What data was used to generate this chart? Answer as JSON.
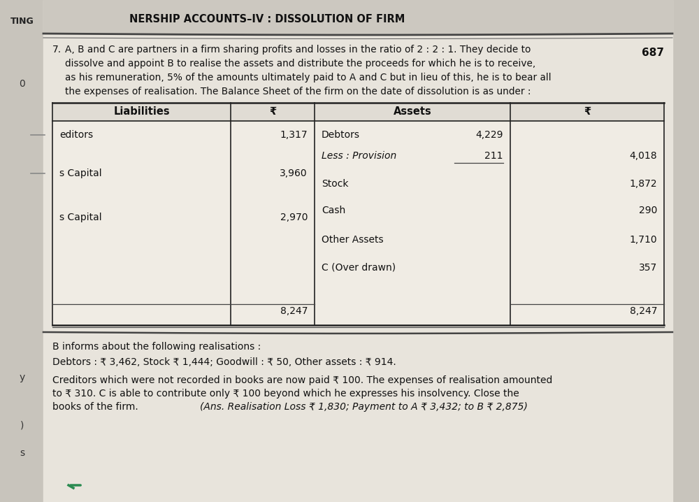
{
  "bg_color": "#c8c4bc",
  "page_bg": "#e8e4dc",
  "header_bg": "#ccc8c0",
  "header_text": "NERSHIP ACCOUNTS–IV : DISSOLUTION OF FIRM",
  "header_left": "TING",
  "page_number": "687",
  "question_number": "7.",
  "question_line1": "A, B and C are partners in a firm sharing profits and losses in the ratio of 2 : 2 : 1. They decide to",
  "question_line2": "dissolve and appoint B to realise the assets and distribute the proceeds for which he is to receive,",
  "question_line3": "as his remuneration, 5% of the amounts ultimately paid to A and C but in lieu of this, he is to bear all",
  "question_line4": "the expenses of realisation. The Balance Sheet of the firm on the date of dissolution is as under :",
  "table_header_liabilities": "Liabilities",
  "table_header_rupee1": "₹",
  "table_header_assets": "Assets",
  "table_header_rupee2": "₹",
  "liab_row1_name": "editors",
  "liab_row1_val": "1,317",
  "liab_row2_name": "s Capital",
  "liab_row2_val": "3,960",
  "liab_row3_name": "s Capital",
  "liab_row3_val": "2,970",
  "liabilities_total": "8,247",
  "asset_row1_name": "Debtors",
  "asset_row1_sub": "4,229",
  "asset_row1_val": "",
  "asset_row2_name": "Less : Provision",
  "asset_row2_sub": "211",
  "asset_row2_val": "4,018",
  "asset_row3_name": "Stock",
  "asset_row3_val": "1,872",
  "asset_row4_name": "Cash",
  "asset_row4_val": "290",
  "asset_row5_name": "Other Assets",
  "asset_row5_val": "1,710",
  "asset_row6_name": "C (Over drawn)",
  "asset_row6_val": "357",
  "assets_total": "8,247",
  "para1": "B informs about the following realisations :",
  "para2": "Debtors : ₹ 3,462, Stock ₹ 1,444; Goodwill : ₹ 50, Other assets : ₹ 914.",
  "para3a": "Creditors which were not recorded in books are now paid ₹ 100. The expenses of realisation amounted",
  "para3b": "to ₹ 310. C is able to contribute only ₹ 100 beyond which he expresses his insolvency. Close the",
  "para3c": "books of the firm.",
  "ans_text": "(Ans. Realisation Loss ₹ 1,830; Payment to A ₹ 3,432; to B ₹ 2,875)",
  "margin_text1": "TING",
  "margin_text2": "0",
  "margin_text3": "y",
  "margin_text4": ")",
  "margin_text5": "s",
  "teal_color": "#2a8a50"
}
